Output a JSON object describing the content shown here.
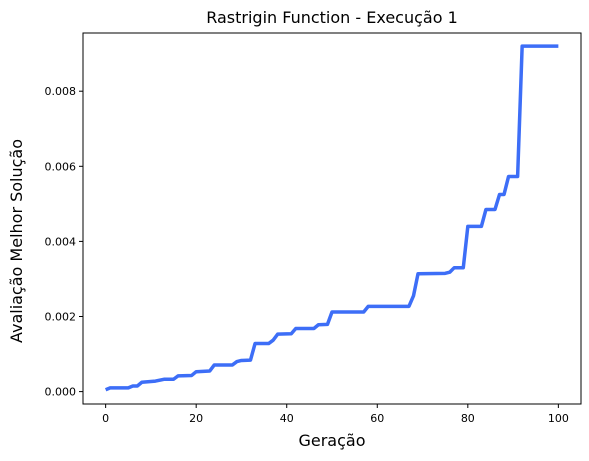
{
  "chart_data": {
    "type": "line",
    "title": "Rastrigin Function - Execução 1",
    "xlabel": "Geração",
    "ylabel": "Avaliação Melhor Solução",
    "xlim": [
      -5,
      105
    ],
    "ylim": [
      -0.00033,
      0.00955
    ],
    "x_ticks": [
      0,
      20,
      40,
      60,
      80,
      100
    ],
    "y_ticks": [
      0.0,
      0.002,
      0.004,
      0.006,
      0.008
    ],
    "x_tick_labels": [
      "0",
      "20",
      "40",
      "60",
      "80",
      "100"
    ],
    "y_tick_labels": [
      "0.000",
      "0.002",
      "0.004",
      "0.006",
      "0.008"
    ],
    "grid": false,
    "legend": "none",
    "series": [
      {
        "color": "#3d6ef7",
        "points": [
          [
            0,
            5e-05
          ],
          [
            1,
            0.0001
          ],
          [
            5,
            0.0001
          ],
          [
            6,
            0.00015
          ],
          [
            7,
            0.00015
          ],
          [
            8,
            0.00025
          ],
          [
            11,
            0.00028
          ],
          [
            13,
            0.00033
          ],
          [
            15,
            0.00033
          ],
          [
            16,
            0.00042
          ],
          [
            19,
            0.00043
          ],
          [
            20,
            0.00053
          ],
          [
            23,
            0.00055
          ],
          [
            24,
            0.00071
          ],
          [
            28,
            0.00071
          ],
          [
            29,
            0.0008
          ],
          [
            30,
            0.00083
          ],
          [
            32,
            0.00084
          ],
          [
            33,
            0.00128
          ],
          [
            36,
            0.00128
          ],
          [
            37,
            0.00137
          ],
          [
            38,
            0.00153
          ],
          [
            41,
            0.00154
          ],
          [
            42,
            0.00168
          ],
          [
            46,
            0.00168
          ],
          [
            47,
            0.00178
          ],
          [
            49,
            0.00179
          ],
          [
            50,
            0.00212
          ],
          [
            56,
            0.00212
          ],
          [
            57,
            0.00212
          ],
          [
            58,
            0.00227
          ],
          [
            67,
            0.00227
          ],
          [
            68,
            0.00255
          ],
          [
            69,
            0.00314
          ],
          [
            75,
            0.00315
          ],
          [
            76,
            0.00318
          ],
          [
            77,
            0.0033
          ],
          [
            79,
            0.0033
          ],
          [
            80,
            0.0044
          ],
          [
            83,
            0.0044
          ],
          [
            84,
            0.00485
          ],
          [
            86,
            0.00485
          ],
          [
            87,
            0.00525
          ],
          [
            88,
            0.00525
          ],
          [
            89,
            0.00573
          ],
          [
            91,
            0.00573
          ],
          [
            92,
            0.0092
          ],
          [
            100,
            0.0092
          ]
        ]
      }
    ]
  }
}
